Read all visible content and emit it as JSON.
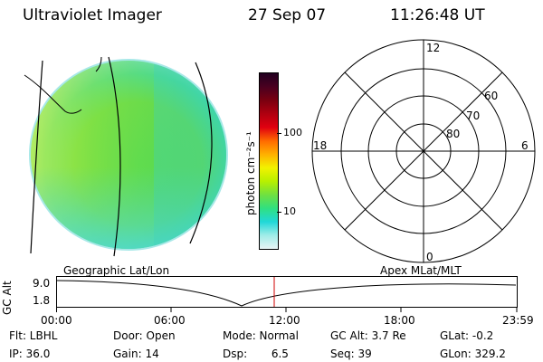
{
  "header": {
    "title": "Ultraviolet Imager",
    "date": "27 Sep 07",
    "time": "11:26:48 UT"
  },
  "colorbar": {
    "label": "photon cm⁻²s⁻¹",
    "ticks": [
      "100",
      "10"
    ],
    "colors": [
      "#220020",
      "#4a0020",
      "#7a0010",
      "#b00010",
      "#e00010",
      "#ff6a00",
      "#ffb000",
      "#f2f200",
      "#b8f000",
      "#70e040",
      "#30e080",
      "#20d8d8",
      "#a0ece8",
      "#e8f4f4"
    ]
  },
  "polar": {
    "labels": [
      "12",
      "18",
      "6",
      "0",
      "60",
      "70",
      "80"
    ]
  },
  "track": {
    "axis_label": "GC Alt",
    "y_ticks": [
      "9.0",
      "1.8"
    ],
    "left_label": "Geographic Lat/Lon",
    "right_label": "Apex  MLat/MLT",
    "x_ticks": [
      "00:00",
      "06:00",
      "12:00",
      "18:00",
      "23:59"
    ]
  },
  "info": {
    "row1": [
      "Flt: LBHL",
      "Door: Open",
      "Mode: Normal",
      "GC Alt: 3.7 Re",
      "GLat:  -0.2"
    ],
    "row2": [
      "IP: 36.0",
      "Gain: 14",
      "Dsp:       6.5",
      "Seq: 39",
      "GLon: 329.2"
    ]
  }
}
